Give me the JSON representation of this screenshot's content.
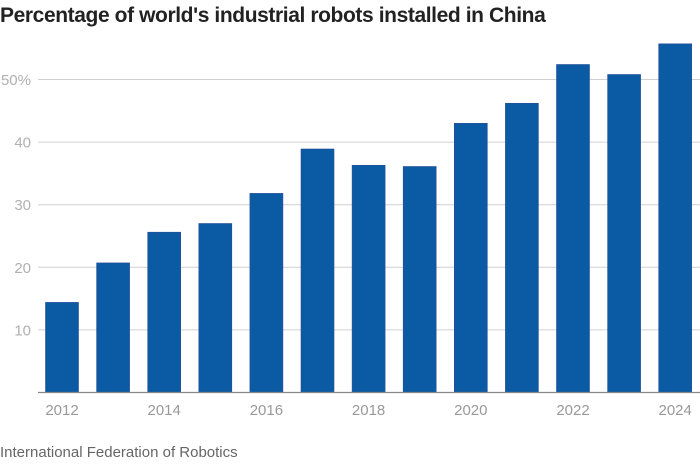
{
  "chart_data": {
    "type": "bar",
    "title": "Percentage of world's industrial robots installed in China",
    "source": "International Federation of Robotics",
    "xlabel": "",
    "ylabel": "",
    "categories": [
      "2012",
      "2013",
      "2014",
      "2015",
      "2016",
      "2017",
      "2018",
      "2019",
      "2020",
      "2021",
      "2022",
      "2023",
      "2024"
    ],
    "values": [
      14.4,
      20.7,
      25.6,
      27.0,
      31.8,
      38.9,
      36.3,
      36.1,
      43.0,
      46.2,
      52.4,
      50.8,
      55.7
    ],
    "ylim": [
      0,
      60
    ],
    "yticks": [
      {
        "value": 10,
        "label": "10"
      },
      {
        "value": 20,
        "label": "20"
      },
      {
        "value": 30,
        "label": "30"
      },
      {
        "value": 40,
        "label": "40"
      },
      {
        "value": 50,
        "label": "50%"
      }
    ],
    "xtick_labels": [
      "2012",
      "2014",
      "2016",
      "2018",
      "2020",
      "2022",
      "2024"
    ],
    "grid": true,
    "legend": "none",
    "colors": {
      "bar": "#0a5aa4",
      "bar_edge": "#2a4f9a",
      "grid": "#d0d0d0",
      "axis": "#888888"
    }
  }
}
